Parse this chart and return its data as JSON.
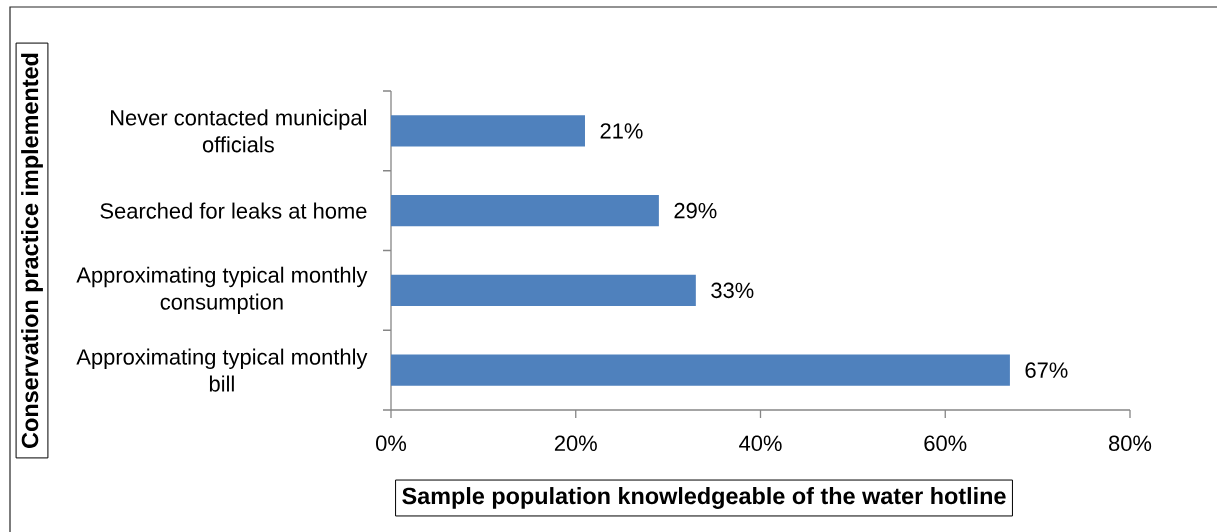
{
  "chart_data": {
    "type": "bar",
    "orientation": "horizontal",
    "xlabel": "Sample population knowledgeable of the water hotline",
    "ylabel": "Conservation practice implemented",
    "categories": [
      "Never contacted municipal officials",
      "Searched for leaks at home",
      "Approximating typical monthly consumption",
      "Approximating typical monthly bill"
    ],
    "values": [
      21,
      29,
      33,
      67
    ],
    "value_labels": [
      "21%",
      "29%",
      "33%",
      "67%"
    ],
    "color": "#4f81bd",
    "xlim": [
      0,
      80
    ],
    "xticks": [
      {
        "value": 0,
        "label": "0%"
      },
      {
        "value": 20,
        "label": "20%"
      },
      {
        "value": 40,
        "label": "40%"
      },
      {
        "value": 60,
        "label": "60%"
      },
      {
        "value": 80,
        "label": "80%"
      }
    ]
  }
}
